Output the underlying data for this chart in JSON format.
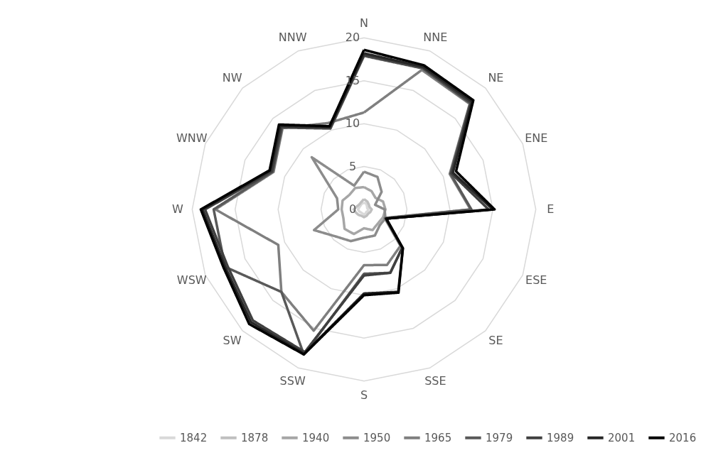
{
  "chart_data": {
    "type": "radar",
    "categories": [
      "N",
      "NNE",
      "NE",
      "ENE",
      "E",
      "ESE",
      "SE",
      "SSE",
      "S",
      "SSW",
      "SW",
      "WSW",
      "W",
      "WNW",
      "NW",
      "NNW"
    ],
    "ylim": [
      0,
      20
    ],
    "yticks": [
      0,
      5,
      10,
      15,
      20
    ],
    "legend": "bottom",
    "marker": "none",
    "line_style": "solid",
    "grid": true,
    "series": [
      {
        "name": "1842",
        "color": "#d9d9d9",
        "values": [
          0.8,
          0.7,
          0.5,
          0.4,
          0.5,
          0.5,
          0.4,
          0.5,
          0.6,
          0.5,
          0.5,
          0.6,
          0.7,
          0.6,
          0.6,
          0.7
        ]
      },
      {
        "name": "1878",
        "color": "#bfbfbf",
        "values": [
          1.2,
          1.0,
          0.8,
          0.7,
          0.9,
          0.8,
          0.7,
          0.8,
          0.9,
          0.8,
          0.9,
          1.0,
          1.2,
          0.9,
          0.8,
          0.9
        ]
      },
      {
        "name": "1940",
        "color": "#a6a6a6",
        "values": [
          2.6,
          2.3,
          1.9,
          2.4,
          2.5,
          2.4,
          2.3,
          2.6,
          2.2,
          3.1,
          3.2,
          2.6,
          2.6,
          2.7,
          2.4,
          2.7
        ]
      },
      {
        "name": "1950",
        "color": "#8c8c8c",
        "values": [
          4.4,
          4.1,
          2.9,
          1.4,
          2.4,
          2.7,
          2.6,
          3.3,
          3.3,
          4.0,
          4.5,
          6.3,
          3.0,
          3.4,
          8.6,
          3.0
        ]
      },
      {
        "name": "1965",
        "color": "#7f7f7f",
        "values": [
          11.3,
          17.6,
          17.4,
          10.8,
          12.4,
          2.6,
          6.0,
          7.0,
          6.5,
          15.3,
          13.6,
          10.8,
          17.3,
          11.4,
          13.4,
          10.9
        ]
      },
      {
        "name": "1979",
        "color": "#595959",
        "values": [
          17.9,
          17.8,
          17.5,
          10.9,
          12.5,
          2.7,
          6.3,
          8.0,
          7.5,
          18.3,
          13.6,
          17.5,
          17.5,
          11.5,
          13.5,
          10.2
        ]
      },
      {
        "name": "1989",
        "color": "#404040",
        "values": [
          18.0,
          17.9,
          17.6,
          11.0,
          14.5,
          2.8,
          6.3,
          8.0,
          7.7,
          18.0,
          18.3,
          17.2,
          18.5,
          11.6,
          13.6,
          10.3
        ]
      },
      {
        "name": "2001",
        "color": "#262626",
        "values": [
          18.2,
          18.0,
          17.8,
          11.2,
          15.0,
          2.8,
          6.4,
          10.4,
          9.8,
          18.2,
          18.6,
          17.5,
          18.8,
          11.8,
          13.8,
          10.4
        ]
      },
      {
        "name": "2016",
        "color": "#000000",
        "values": [
          18.6,
          18.2,
          18.0,
          11.6,
          15.2,
          2.8,
          6.4,
          10.5,
          10.0,
          18.3,
          18.9,
          17.7,
          19.0,
          11.9,
          14.0,
          10.5
        ]
      }
    ]
  }
}
